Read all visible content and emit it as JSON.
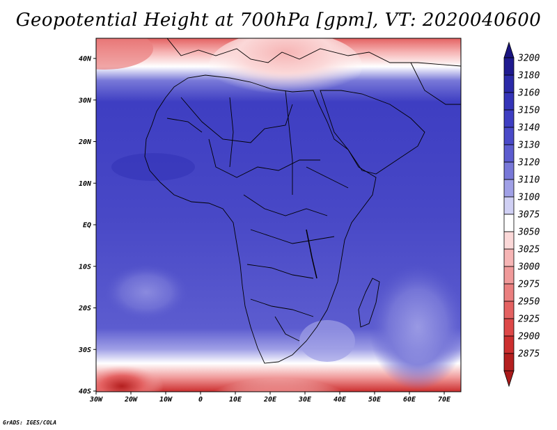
{
  "title": "Geopotential Height at 700hPa [gpm], VT: 2020040600",
  "credit": "GrADS: IGES/COLA",
  "map": {
    "variable": "Geopotential Height at 700hPa",
    "units": "gpm",
    "valid_time": "2020040600",
    "lon_ticks": [
      "30W",
      "20W",
      "10W",
      "0",
      "10E",
      "20E",
      "30E",
      "40E",
      "50E",
      "60E",
      "70E"
    ],
    "lat_ticks": [
      "40N",
      "30N",
      "20N",
      "10N",
      "EQ",
      "10S",
      "20S",
      "30S",
      "40S"
    ]
  },
  "colorbar": {
    "levels": [
      "3200",
      "3180",
      "3160",
      "3150",
      "3140",
      "3130",
      "3120",
      "3110",
      "3100",
      "3075",
      "3050",
      "3025",
      "3000",
      "2975",
      "2950",
      "2925",
      "2900",
      "2875"
    ],
    "colors": [
      "#1f1a8f",
      "#2b2aa8",
      "#3434b8",
      "#3e3ec2",
      "#4a4ac8",
      "#5c5ccf",
      "#7878d8",
      "#a0a0e6",
      "#d0d0f4",
      "#ffffff",
      "#fbd8d8",
      "#f6b5b5",
      "#f09a9a",
      "#ea7f7f",
      "#e46262",
      "#dd4848",
      "#cc2f2f",
      "#b41f1f"
    ],
    "top_arrow_color": "#1a1480",
    "bottom_arrow_color": "#aa1a1a"
  }
}
